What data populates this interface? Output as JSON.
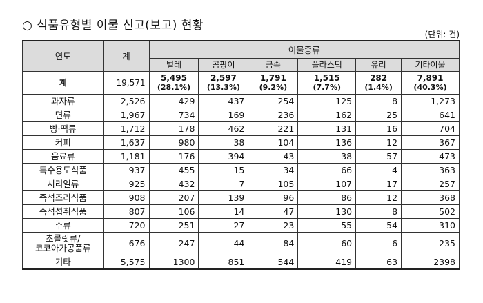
{
  "title": "○ 식품유형별 이물 신고(보고) 현황",
  "unit": "(단위: 건)",
  "headers": {
    "year": "연도",
    "total": "계",
    "group": "이물종류",
    "cols": [
      "벌레",
      "곰팡이",
      "금속",
      "플라스틱",
      "유리",
      "기타이물"
    ]
  },
  "total_row": {
    "label": "계",
    "total": "19,571",
    "values": [
      "5,495",
      "2,597",
      "1,791",
      "1,515",
      "282",
      "7,891"
    ],
    "pcts": [
      "(28.1%)",
      "(13.3%)",
      "(9.2%)",
      "(7.7%)",
      "(1.4%)",
      "(40.3%)"
    ]
  },
  "rows": [
    {
      "label": "과자류",
      "total": "2,526",
      "values": [
        "429",
        "437",
        "254",
        "125",
        "8",
        "1,273"
      ]
    },
    {
      "label": "면류",
      "total": "1,967",
      "values": [
        "734",
        "169",
        "236",
        "162",
        "25",
        "641"
      ]
    },
    {
      "label": "빵·떡류",
      "total": "1,712",
      "values": [
        "178",
        "462",
        "221",
        "131",
        "16",
        "704"
      ]
    },
    {
      "label": "커피",
      "total": "1,637",
      "values": [
        "980",
        "38",
        "104",
        "136",
        "12",
        "367"
      ]
    },
    {
      "label": "음료류",
      "total": "1,181",
      "values": [
        "176",
        "394",
        "43",
        "38",
        "57",
        "473"
      ]
    },
    {
      "label": "특수용도식품",
      "total": "937",
      "values": [
        "455",
        "15",
        "34",
        "66",
        "4",
        "363"
      ]
    },
    {
      "label": "시리얼류",
      "total": "925",
      "values": [
        "432",
        "7",
        "105",
        "107",
        "17",
        "257"
      ]
    },
    {
      "label": "즉석조리식품",
      "total": "908",
      "values": [
        "207",
        "139",
        "96",
        "86",
        "12",
        "368"
      ]
    },
    {
      "label": "즉석섭취식품",
      "total": "807",
      "values": [
        "106",
        "14",
        "47",
        "130",
        "8",
        "502"
      ]
    },
    {
      "label": "주류",
      "total": "720",
      "values": [
        "251",
        "27",
        "23",
        "55",
        "54",
        "310"
      ]
    },
    {
      "label": "초콜릿류/코코아가공품류",
      "label_lines": [
        "초콜릿류/",
        "코코아가공품류"
      ],
      "total": "676",
      "values": [
        "247",
        "44",
        "84",
        "60",
        "6",
        "235"
      ]
    },
    {
      "label": "기타",
      "total": "5,575",
      "values": [
        "1300",
        "851",
        "544",
        "419",
        "63",
        "2398"
      ]
    }
  ]
}
